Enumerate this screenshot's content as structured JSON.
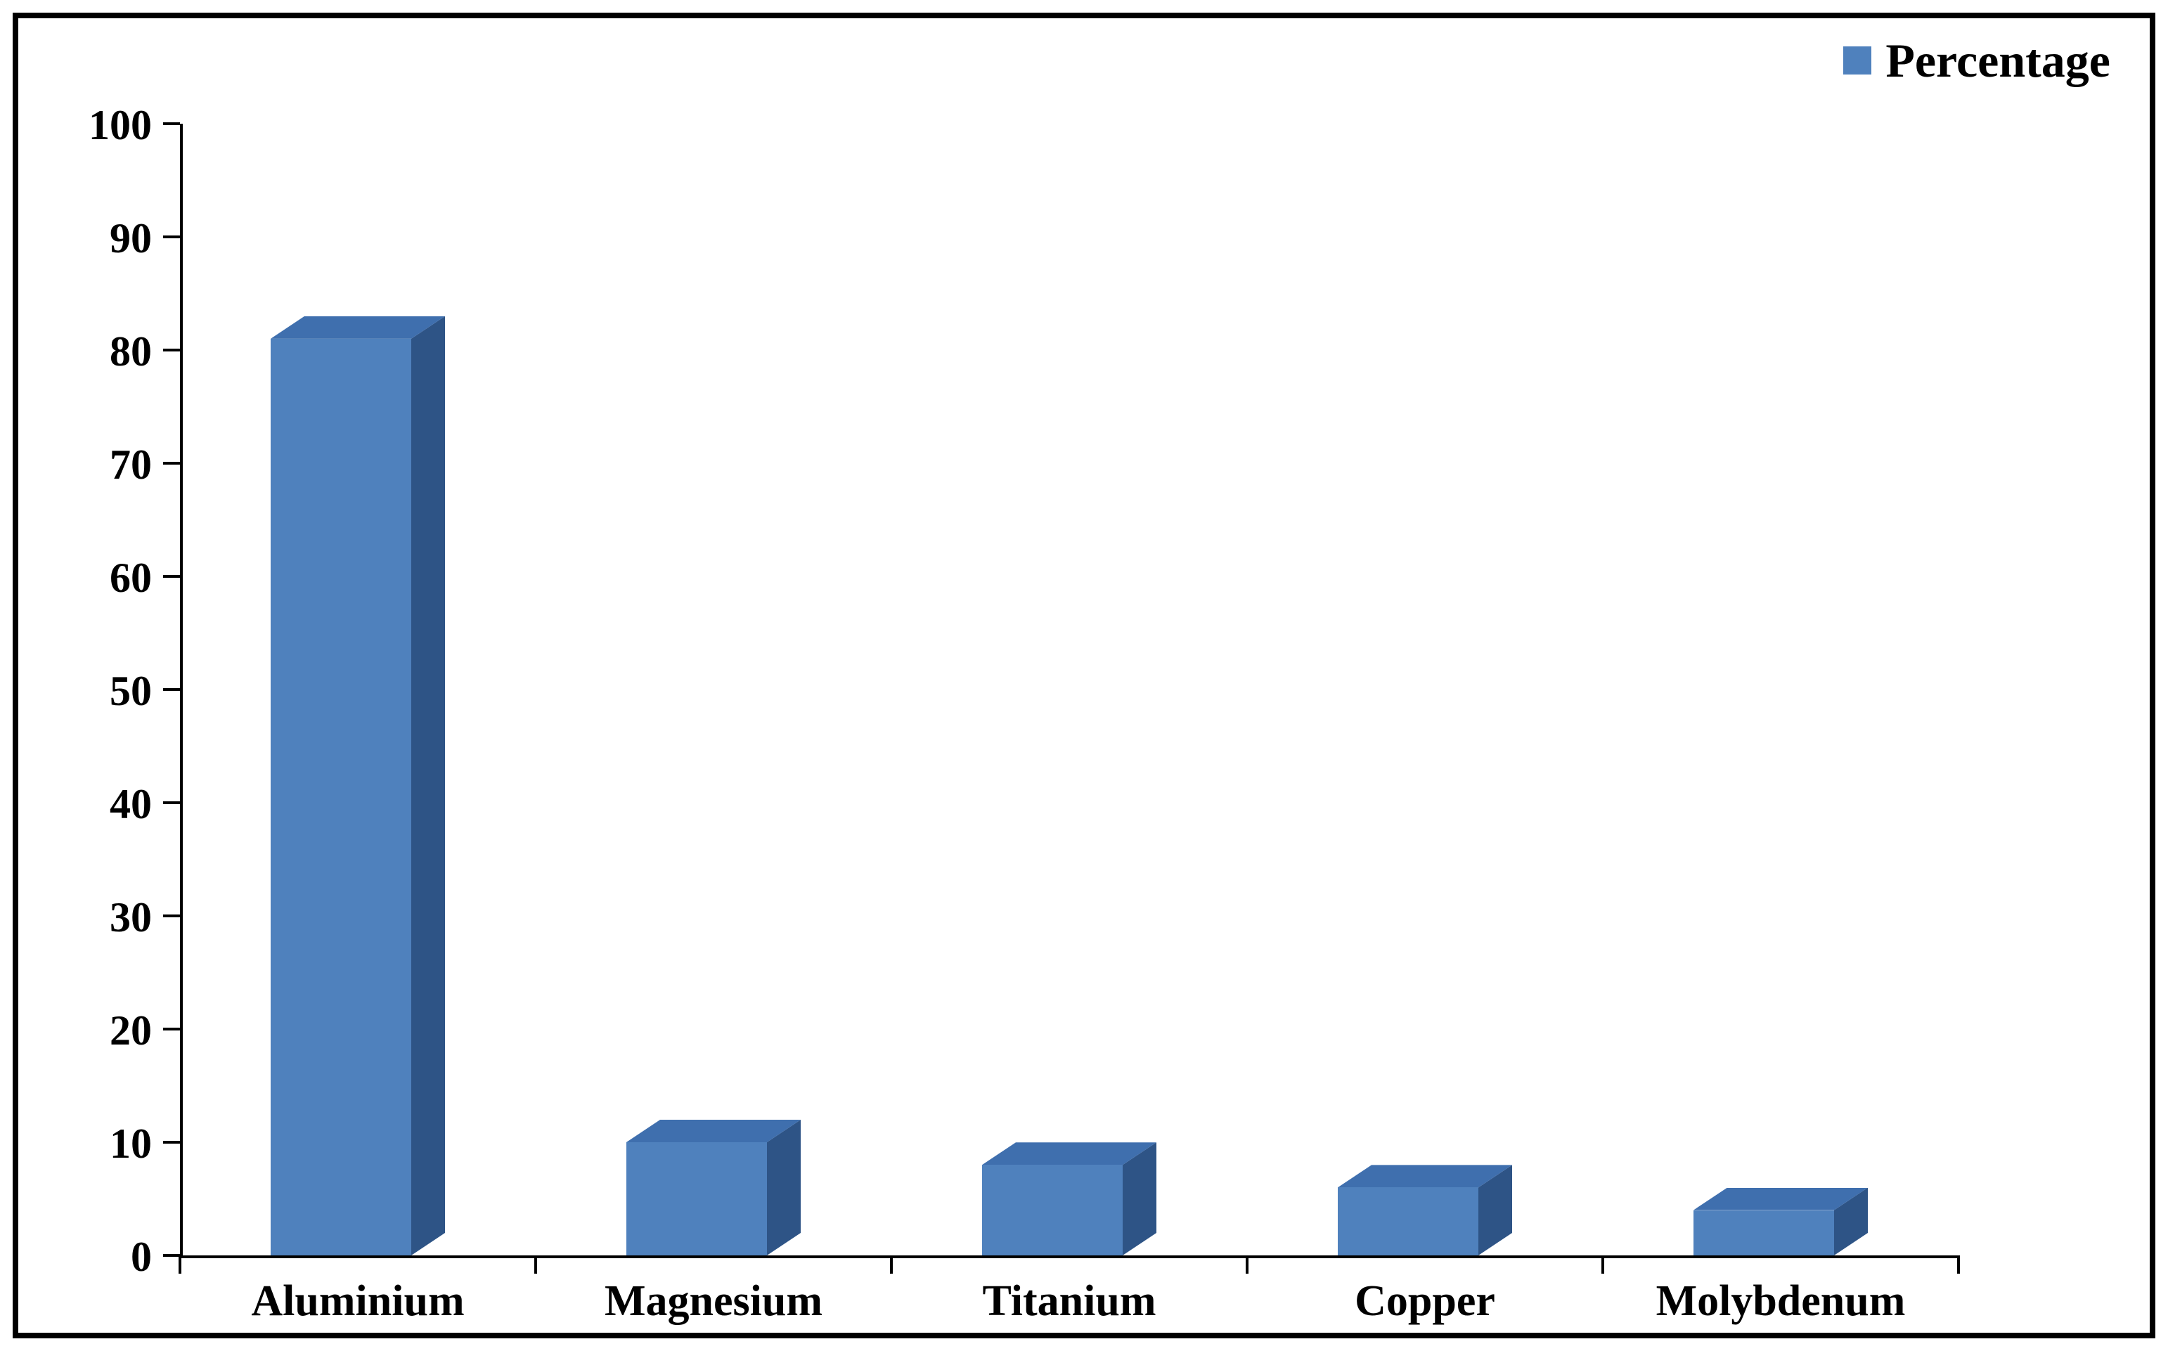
{
  "chart_data": {
    "type": "bar",
    "style": "3d",
    "title": "",
    "xlabel": "",
    "ylabel": "",
    "legend": "Percentage",
    "legend_position": "top-right",
    "categories": [
      "Aluminium",
      "Magnesium",
      "Titanium",
      "Copper",
      "Molybdenum"
    ],
    "values": [
      81,
      10,
      8,
      6,
      4
    ],
    "ylim": [
      0,
      100
    ],
    "ytick_step": 10,
    "grid": false,
    "colors": {
      "bar_front": "#4f81bd",
      "bar_top": "#3f6fae",
      "bar_side": "#2e5486",
      "axis": "#000000",
      "text": "#000000",
      "frame_border": "#000000",
      "background": "#ffffff"
    }
  }
}
